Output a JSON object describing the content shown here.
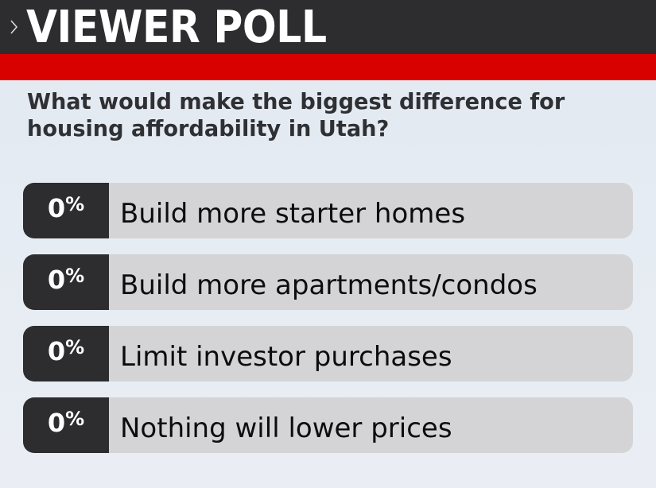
{
  "header": {
    "title": "VIEWER POLL",
    "icon": "chevron-right-icon",
    "background": "#2d2d2f",
    "accent_bar_color": "#d90000"
  },
  "poll": {
    "question": "What would make the biggest difference for housing affordability in Utah?",
    "options": [
      {
        "percent_value": "0",
        "percent_unit": "%",
        "label": "Build more starter homes"
      },
      {
        "percent_value": "0",
        "percent_unit": "%",
        "label": "Build more apartments/condos"
      },
      {
        "percent_value": "0",
        "percent_unit": "%",
        "label": "Limit investor purchases"
      },
      {
        "percent_value": "0",
        "percent_unit": "%",
        "label": "Nothing will lower prices"
      }
    ]
  }
}
